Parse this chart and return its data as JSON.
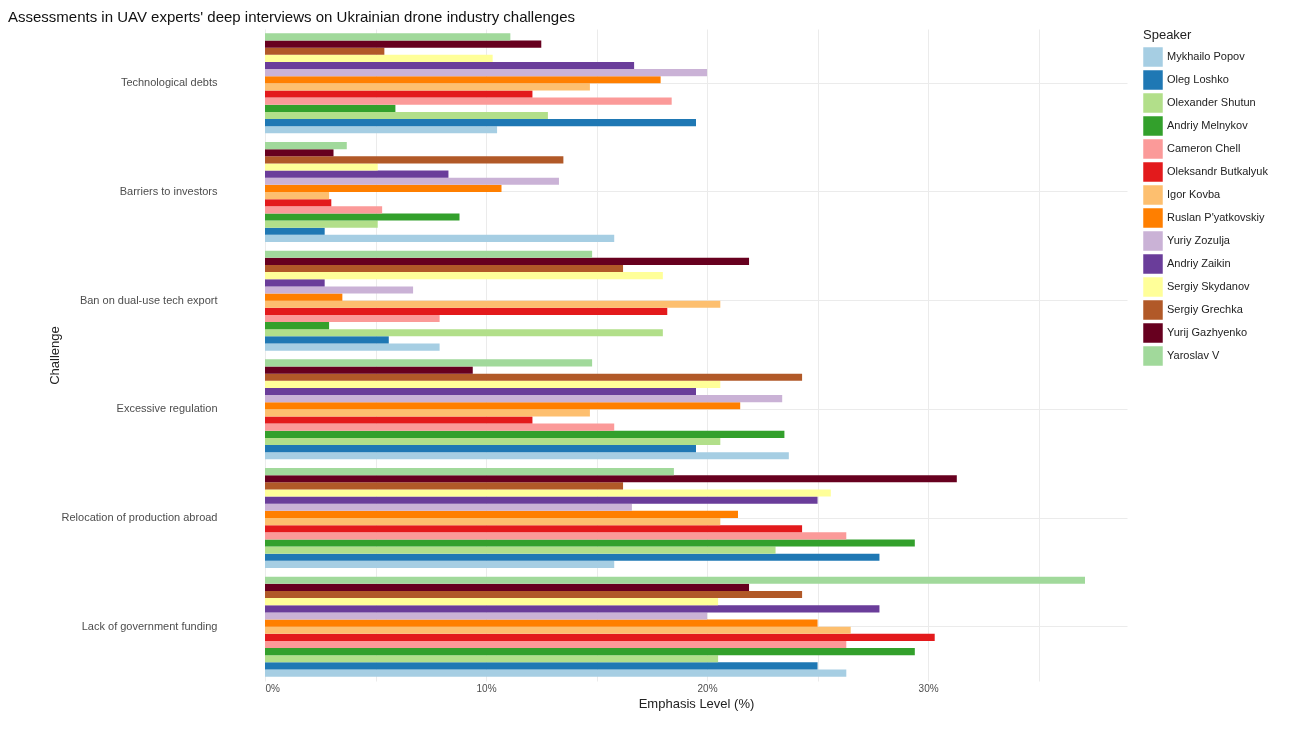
{
  "chart_data": {
    "type": "bar",
    "orientation": "horizontal",
    "title": "Assessments in UAV experts' deep interviews on Ukrainian drone industry challenges",
    "xlabel": "Emphasis Level (%)",
    "ylabel": "Challenge",
    "legend_title": "Speaker",
    "legend": "right",
    "grid": true,
    "categories": [
      "Technological debts",
      "Barriers to investors",
      "Ban on dual-use tech export",
      "Excessive regulation",
      "Relocation of production abroad",
      "Lack of government funding"
    ],
    "xlim": [
      0,
      39
    ],
    "xticks": [
      {
        "value": 0,
        "label": "0%"
      },
      {
        "value": 5,
        "label": null
      },
      {
        "value": 10,
        "label": "10%"
      },
      {
        "value": 15,
        "label": null
      },
      {
        "value": 20,
        "label": "20%"
      },
      {
        "value": 25,
        "label": null
      },
      {
        "value": 30,
        "label": "30%"
      },
      {
        "value": 35,
        "label": null
      }
    ],
    "series": [
      {
        "name": "Mykhailo Popov",
        "color": "#a6cee3",
        "values": [
          10.5,
          15.8,
          7.9,
          23.7,
          15.8,
          26.3
        ]
      },
      {
        "name": "Oleg Loshko",
        "color": "#1f78b4",
        "values": [
          19.5,
          2.7,
          5.6,
          19.5,
          27.8,
          25.0
        ]
      },
      {
        "name": "Olexander Shutun",
        "color": "#b2df8a",
        "values": [
          12.8,
          5.1,
          18.0,
          20.6,
          23.1,
          20.5
        ]
      },
      {
        "name": "Andriy Melnykov",
        "color": "#33a02c",
        "values": [
          5.9,
          8.8,
          2.9,
          23.5,
          29.4,
          29.4
        ]
      },
      {
        "name": "Cameron Chell",
        "color": "#fb9a99",
        "values": [
          18.4,
          5.3,
          7.9,
          15.8,
          26.3,
          26.3
        ]
      },
      {
        "name": "Oleksandr Butkalyuk",
        "color": "#e31a1c",
        "values": [
          12.1,
          3.0,
          18.2,
          12.1,
          24.3,
          30.3
        ]
      },
      {
        "name": "Igor Kovba",
        "color": "#fdbf6f",
        "values": [
          14.7,
          2.9,
          20.6,
          14.7,
          20.6,
          26.5
        ]
      },
      {
        "name": "Ruslan P'yatkovskiy",
        "color": "#ff7f00",
        "values": [
          17.9,
          10.7,
          3.5,
          21.5,
          21.4,
          25.0
        ]
      },
      {
        "name": "Yuriy Zozulja",
        "color": "#cab2d6",
        "values": [
          20.0,
          13.3,
          6.7,
          23.4,
          16.6,
          20.0
        ]
      },
      {
        "name": "Andriy Zaikin",
        "color": "#6a3d9a",
        "values": [
          16.7,
          8.3,
          2.7,
          19.5,
          25.0,
          27.8
        ]
      },
      {
        "name": "Sergiy Skydanov",
        "color": "#ffff99",
        "values": [
          10.3,
          5.1,
          18.0,
          20.6,
          25.6,
          20.5
        ]
      },
      {
        "name": "Sergiy Grechka",
        "color": "#b15928",
        "values": [
          5.4,
          13.5,
          16.2,
          24.3,
          16.2,
          24.3
        ]
      },
      {
        "name": "Yurij Gazhyenko",
        "color": "#67001f",
        "values": [
          12.5,
          3.1,
          21.9,
          9.4,
          31.3,
          21.9
        ]
      },
      {
        "name": "Yaroslav V",
        "color": "#a1d99b",
        "values": [
          11.1,
          3.7,
          14.8,
          14.8,
          18.5,
          37.1
        ]
      }
    ]
  }
}
